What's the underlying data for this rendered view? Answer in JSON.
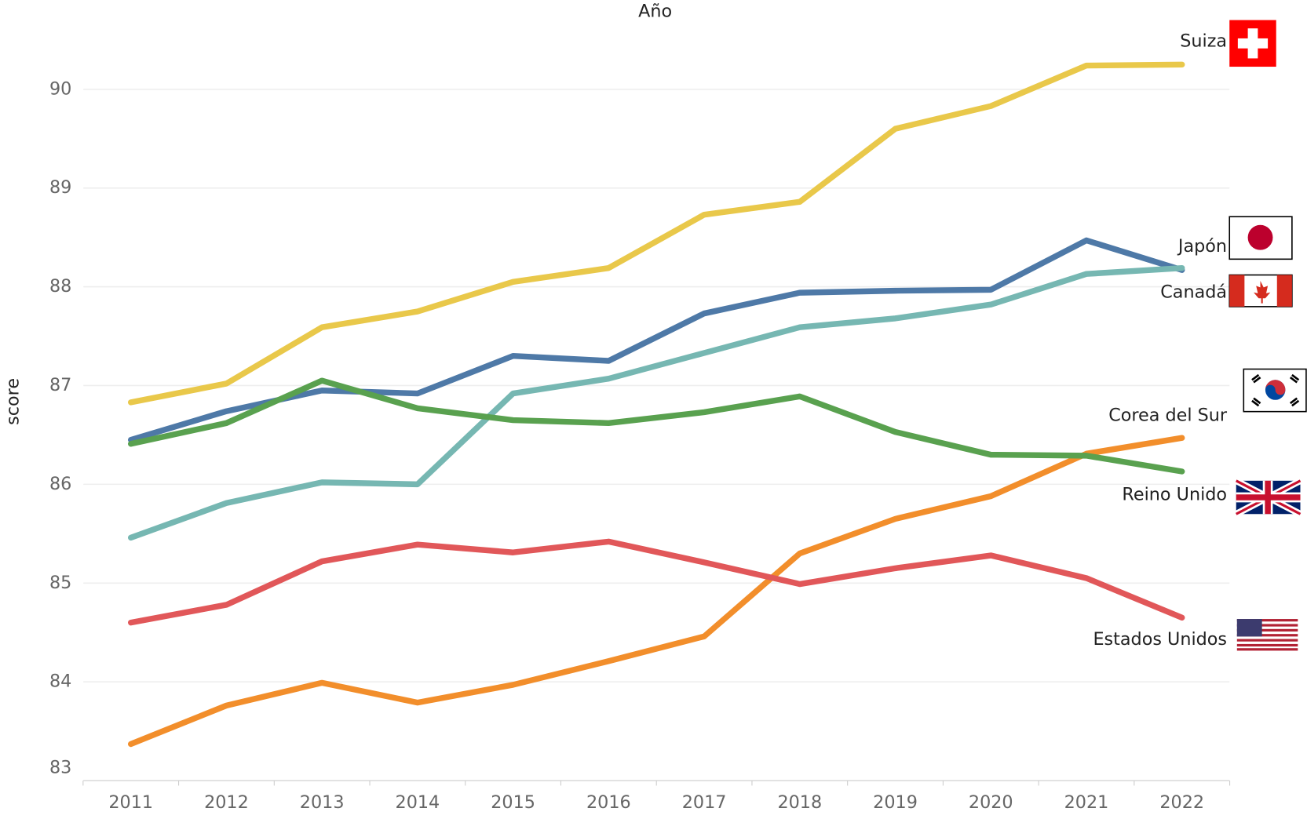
{
  "chart_data": {
    "type": "line",
    "title": "Año",
    "ylabel": "score",
    "categories": [
      "2011",
      "2012",
      "2013",
      "2014",
      "2015",
      "2016",
      "2017",
      "2018",
      "2019",
      "2020",
      "2021",
      "2022"
    ],
    "ylim": [
      83,
      90.65
    ],
    "yticks": [
      83,
      84,
      85,
      86,
      87,
      88,
      89,
      90
    ],
    "grid": true,
    "series": [
      {
        "name": "Suiza",
        "color": "#e9c84a",
        "values": [
          86.83,
          87.02,
          87.59,
          87.75,
          88.05,
          88.19,
          88.73,
          88.86,
          89.6,
          89.83,
          90.24,
          90.25
        ]
      },
      {
        "name": "Japón",
        "color": "#4e79a7",
        "values": [
          86.45,
          86.74,
          86.95,
          86.92,
          87.3,
          87.25,
          87.73,
          87.94,
          87.96,
          87.97,
          88.47,
          88.17
        ]
      },
      {
        "name": "Canadá",
        "color": "#76b7b2",
        "values": [
          85.46,
          85.81,
          86.02,
          86.0,
          86.92,
          87.07,
          87.33,
          87.59,
          87.68,
          87.82,
          88.13,
          88.19
        ]
      },
      {
        "name": "Corea del Sur",
        "color": "#f28e2b",
        "values": [
          83.37,
          83.76,
          83.99,
          83.79,
          83.97,
          84.21,
          84.46,
          85.3,
          85.65,
          85.88,
          86.31,
          86.47
        ]
      },
      {
        "name": "Reino Unido",
        "color": "#59a14f",
        "values": [
          86.41,
          86.62,
          87.05,
          86.77,
          86.65,
          86.62,
          86.73,
          86.89,
          86.53,
          86.3,
          86.29,
          86.13
        ]
      },
      {
        "name": "Estados Unidos",
        "color": "#e15759",
        "values": [
          84.6,
          84.78,
          85.22,
          85.39,
          85.31,
          85.42,
          85.21,
          84.99,
          85.15,
          85.28,
          85.05,
          84.65
        ]
      }
    ]
  }
}
